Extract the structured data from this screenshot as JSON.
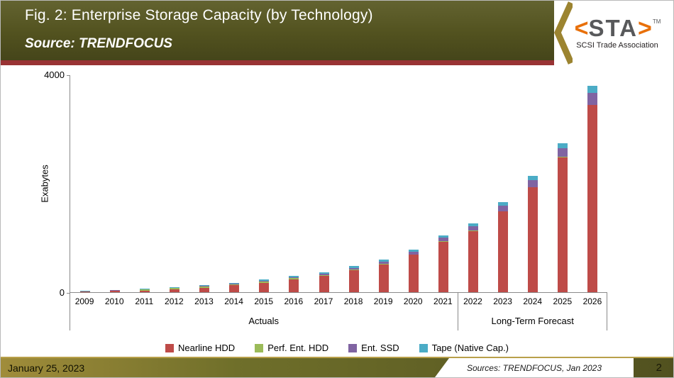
{
  "header": {
    "title": "Fig. 2: Enterprise Storage Capacity (by Technology)",
    "source": "Source: TRENDFOCUS",
    "logo": {
      "bracket_left": "<",
      "text": "STA",
      "bracket_right": ">",
      "tm": "TM",
      "subtitle": "SCSI Trade Association",
      "accent_color": "#e8700a"
    }
  },
  "chart_data": {
    "type": "bar",
    "stacked": true,
    "ylabel": "Exabytes",
    "ylim": [
      0,
      4000
    ],
    "yticks": [
      0,
      4000
    ],
    "grid": false,
    "legend_position": "bottom",
    "categories": [
      "2009",
      "2010",
      "2011",
      "2012",
      "2013",
      "2014",
      "2015",
      "2016",
      "2017",
      "2018",
      "2019",
      "2020",
      "2021",
      "2022",
      "2023",
      "2024",
      "2025",
      "2026"
    ],
    "groups": [
      {
        "label": "Actuals",
        "count": 13
      },
      {
        "label": "Long-Term Forecast",
        "count": 5
      }
    ],
    "series": [
      {
        "name": "Nearline HDD",
        "color": "#BE4B48",
        "values": [
          10,
          20,
          32,
          55,
          85,
          125,
          175,
          240,
          305,
          405,
          515,
          690,
          930,
          1130,
          1490,
          1930,
          2490,
          3450
        ]
      },
      {
        "name": "Perf. Ent. HDD",
        "color": "#9BBB59",
        "values": [
          7,
          12,
          15,
          18,
          20,
          20,
          18,
          16,
          14,
          12,
          10,
          8,
          7,
          6,
          5,
          5,
          4,
          4
        ]
      },
      {
        "name": "Ent. SSD",
        "color": "#8064A2",
        "values": [
          1,
          2,
          3,
          5,
          7,
          10,
          14,
          18,
          22,
          30,
          38,
          50,
          65,
          80,
          100,
          125,
          155,
          215
        ]
      },
      {
        "name": "Tape (Native Cap.)",
        "color": "#4BACC6",
        "values": [
          7,
          11,
          15,
          17,
          18,
          20,
          23,
          26,
          29,
          33,
          37,
          42,
          48,
          54,
          65,
          80,
          100,
          135
        ]
      }
    ]
  },
  "footer": {
    "date": "January 25, 2023",
    "sources": "Sources: TRENDFOCUS, Jan 2023",
    "page": "2"
  }
}
